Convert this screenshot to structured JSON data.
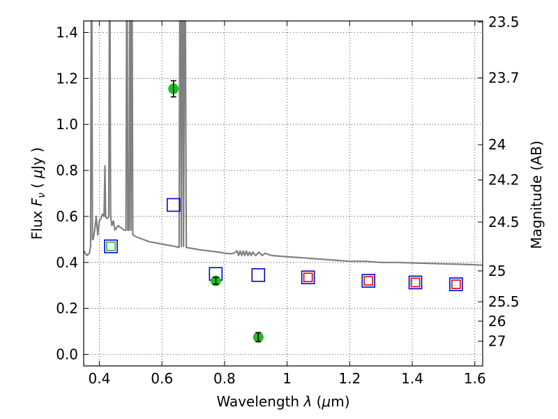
{
  "chart_data": {
    "type": "scatter",
    "title": "",
    "xlabel": {
      "prefix": "Wavelength",
      "symbol": "λ",
      "unit_open": " (",
      "unit_mu": "μ",
      "unit_rest": "m)"
    },
    "ylabel": {
      "prefix": "Flux",
      "symbol": "F",
      "subscript": "ν",
      "unit_open": "( ",
      "unit_mu": "μ",
      "unit_rest": "Jy )"
    },
    "y2label": "Magnitude (AB)",
    "xlim": [
      0.35,
      1.625
    ],
    "ylim": [
      -0.05,
      1.45
    ],
    "grid": true,
    "x_ticks": [
      {
        "v": 0.4,
        "t": "0.4"
      },
      {
        "v": 0.6,
        "t": "0.6"
      },
      {
        "v": 0.8,
        "t": "0.8"
      },
      {
        "v": 1.0,
        "t": "1"
      },
      {
        "v": 1.2,
        "t": "1.2"
      },
      {
        "v": 1.4,
        "t": "1.4"
      },
      {
        "v": 1.6,
        "t": "1.6"
      }
    ],
    "y_ticks": [
      {
        "v": 0.0,
        "t": "0.0"
      },
      {
        "v": 0.2,
        "t": "0.2"
      },
      {
        "v": 0.4,
        "t": "0.4"
      },
      {
        "v": 0.6,
        "t": "0.6"
      },
      {
        "v": 0.8,
        "t": "0.8"
      },
      {
        "v": 1.0,
        "t": "1.0"
      },
      {
        "v": 1.2,
        "t": "1.2"
      },
      {
        "v": 1.4,
        "t": "1.4"
      }
    ],
    "y2_ticks": [
      {
        "mag": 23.5,
        "t": "23.5"
      },
      {
        "mag": 23.7,
        "t": "23.7"
      },
      {
        "mag": 24,
        "t": "24"
      },
      {
        "mag": 24.2,
        "t": "24.2"
      },
      {
        "mag": 24.5,
        "t": "24.5"
      },
      {
        "mag": 25,
        "t": "25"
      },
      {
        "mag": 25.5,
        "t": "25.5"
      },
      {
        "mag": 26,
        "t": "26"
      },
      {
        "mag": 27,
        "t": "27"
      }
    ],
    "series": [
      {
        "kind": "line",
        "color": "#808080",
        "points": [
          [
            0.35,
            0.45
          ],
          [
            0.36,
            0.43
          ],
          [
            0.368,
            0.44
          ],
          [
            0.372,
            0.47
          ],
          [
            0.374,
            1.45
          ],
          [
            0.376,
            1.45
          ],
          [
            0.378,
            0.5
          ],
          [
            0.38,
            0.5
          ],
          [
            0.385,
            0.54
          ],
          [
            0.39,
            0.6
          ],
          [
            0.395,
            0.52
          ],
          [
            0.4,
            0.58
          ],
          [
            0.405,
            0.59
          ],
          [
            0.41,
            0.61
          ],
          [
            0.415,
            0.6
          ],
          [
            0.418,
            0.82
          ],
          [
            0.42,
            0.6
          ],
          [
            0.425,
            0.59
          ],
          [
            0.43,
            0.6
          ],
          [
            0.432,
            1.45
          ],
          [
            0.434,
            1.45
          ],
          [
            0.436,
            0.6
          ],
          [
            0.44,
            0.56
          ],
          [
            0.445,
            0.58
          ],
          [
            0.45,
            0.54
          ],
          [
            0.46,
            0.56
          ],
          [
            0.47,
            0.55
          ],
          [
            0.48,
            0.54
          ],
          [
            0.485,
            0.54
          ],
          [
            0.487,
            1.45
          ],
          [
            0.489,
            1.45
          ],
          [
            0.491,
            0.54
          ],
          [
            0.495,
            0.54
          ],
          [
            0.497,
            1.45
          ],
          [
            0.499,
            1.45
          ],
          [
            0.501,
            0.54
          ],
          [
            0.503,
            1.45
          ],
          [
            0.505,
            1.45
          ],
          [
            0.507,
            0.52
          ],
          [
            0.52,
            0.51
          ],
          [
            0.54,
            0.5
          ],
          [
            0.56,
            0.49
          ],
          [
            0.58,
            0.485
          ],
          [
            0.6,
            0.48
          ],
          [
            0.62,
            0.475
          ],
          [
            0.64,
            0.47
          ],
          [
            0.655,
            0.465
          ],
          [
            0.657,
            1.45
          ],
          [
            0.66,
            1.45
          ],
          [
            0.662,
            0.47
          ],
          [
            0.664,
            1.45
          ],
          [
            0.667,
            1.45
          ],
          [
            0.669,
            0.47
          ],
          [
            0.672,
            1.45
          ],
          [
            0.675,
            1.45
          ],
          [
            0.678,
            0.465
          ],
          [
            0.7,
            0.46
          ],
          [
            0.72,
            0.455
          ],
          [
            0.75,
            0.45
          ],
          [
            0.78,
            0.445
          ],
          [
            0.8,
            0.44
          ],
          [
            0.82,
            0.438
          ],
          [
            0.83,
            0.44
          ],
          [
            0.84,
            0.45
          ],
          [
            0.845,
            0.43
          ],
          [
            0.85,
            0.45
          ],
          [
            0.855,
            0.43
          ],
          [
            0.86,
            0.45
          ],
          [
            0.865,
            0.43
          ],
          [
            0.87,
            0.45
          ],
          [
            0.875,
            0.43
          ],
          [
            0.88,
            0.445
          ],
          [
            0.885,
            0.43
          ],
          [
            0.89,
            0.445
          ],
          [
            0.9,
            0.43
          ],
          [
            0.91,
            0.445
          ],
          [
            0.92,
            0.43
          ],
          [
            0.93,
            0.44
          ],
          [
            0.95,
            0.43
          ],
          [
            1.0,
            0.425
          ],
          [
            1.05,
            0.42
          ],
          [
            1.1,
            0.415
          ],
          [
            1.15,
            0.41
          ],
          [
            1.2,
            0.405
          ],
          [
            1.25,
            0.405
          ],
          [
            1.3,
            0.4
          ],
          [
            1.35,
            0.4
          ],
          [
            1.4,
            0.398
          ],
          [
            1.45,
            0.396
          ],
          [
            1.5,
            0.394
          ],
          [
            1.55,
            0.392
          ],
          [
            1.6,
            0.39
          ],
          [
            1.625,
            0.388
          ]
        ]
      },
      {
        "kind": "open-square",
        "color": "#0000cc",
        "points": [
          [
            0.437,
            0.47
          ],
          [
            0.637,
            0.65
          ],
          [
            0.772,
            0.35
          ],
          [
            0.908,
            0.345
          ],
          [
            1.067,
            0.335
          ],
          [
            1.26,
            0.32
          ],
          [
            1.41,
            0.313
          ],
          [
            1.54,
            0.305
          ]
        ]
      },
      {
        "kind": "small-open-square",
        "color": "#dd0000",
        "points": [
          [
            1.067,
            0.335
          ],
          [
            1.26,
            0.32
          ],
          [
            1.41,
            0.313
          ],
          [
            1.54,
            0.305
          ]
        ]
      },
      {
        "kind": "small-open-square",
        "color": "#22bb22",
        "points": [
          [
            0.437,
            0.47
          ]
        ]
      },
      {
        "kind": "filled-circle-errorbar",
        "color": "#22bb22",
        "points": [
          [
            0.637,
            1.155,
            0.035
          ],
          [
            0.772,
            0.32,
            0.015
          ],
          [
            0.908,
            0.075,
            0.02
          ]
        ]
      }
    ]
  }
}
